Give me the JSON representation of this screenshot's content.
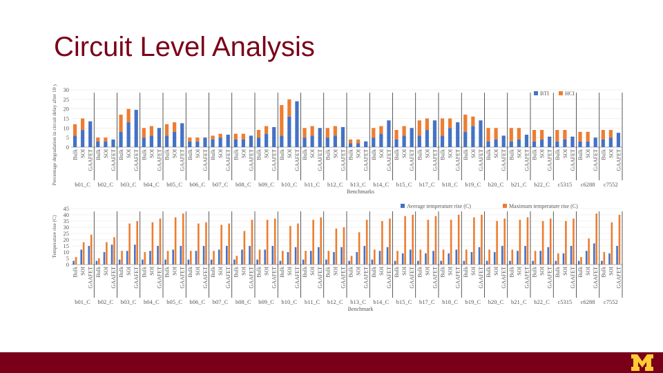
{
  "page": {
    "title": "Circuit Level Analysis"
  },
  "colors": {
    "brand": "#7a0019",
    "blue": "#4472c4",
    "orange": "#ed7d31",
    "footer": "#7a0019",
    "logo": "#ffcc33"
  },
  "chart_data": [
    {
      "type": "bar",
      "stacked": true,
      "ylim": [
        0,
        30
      ],
      "yticks": [
        0,
        5,
        10,
        15,
        20,
        25,
        30
      ],
      "ylabel": "Percentage degradation in circuit delay after 10 years due to BTI",
      "xlabel": "Benchmarks",
      "subcategories": [
        "Bulk",
        "SOI",
        "GAAFET"
      ],
      "groups": [
        "b01_C",
        "b02_C",
        "b03_C",
        "b04_C",
        "b05_C",
        "b06_C",
        "b07_C",
        "b08_C",
        "b09_C",
        "b10_C",
        "b11_C",
        "b12_C",
        "b13_C",
        "b14_C",
        "b15_C",
        "b17_C",
        "b18_C",
        "b19_C",
        "b20_C",
        "b21_C",
        "b22_C",
        "c5315",
        "c6288",
        "c7552"
      ],
      "series": [
        {
          "name": "BTI",
          "values": [
            6,
            9,
            13.5,
            3,
            3,
            4,
            8,
            13,
            19.5,
            5,
            6,
            10,
            6,
            8,
            12.5,
            3,
            3,
            5,
            4,
            5,
            6.5,
            4,
            4,
            6,
            5,
            7,
            10.5,
            6,
            16,
            24,
            5,
            6,
            10,
            5,
            6,
            10.5,
            2,
            2,
            3,
            5,
            7,
            14,
            4,
            6,
            10,
            6,
            9,
            14,
            6,
            10,
            13,
            8,
            11,
            14,
            3,
            4,
            6,
            3,
            4,
            6.5,
            3,
            4,
            5.5,
            3,
            4,
            5.5,
            3,
            3,
            5,
            4,
            5,
            7.5
          ]
        },
        {
          "name": "HCI",
          "values": [
            6,
            6,
            0,
            2,
            2,
            0,
            9,
            7,
            0,
            5,
            5,
            0,
            6,
            5,
            0,
            2,
            2,
            0,
            2,
            2,
            0,
            3,
            3,
            0,
            4,
            4,
            0,
            16,
            9,
            0,
            5,
            5,
            0,
            5,
            5,
            0,
            2,
            2,
            0,
            5,
            4,
            0,
            5,
            5,
            0,
            8,
            6,
            0,
            9,
            5,
            0,
            9,
            5,
            0,
            7,
            6,
            0,
            7,
            6,
            0,
            6,
            5,
            0,
            6,
            5,
            0,
            5,
            5,
            0,
            5,
            4,
            0
          ]
        }
      ],
      "legend_position": "top-right"
    },
    {
      "type": "bar",
      "ylim": [
        0,
        45
      ],
      "yticks": [
        0,
        5,
        10,
        15,
        20,
        25,
        30,
        35,
        40,
        45
      ],
      "ylabel": "Temperature rise (C)",
      "xlabel": "Benchmark",
      "subcategories": [
        "Bulk",
        "SOI",
        "GAAFET"
      ],
      "groups": [
        "b01_C",
        "b02_C",
        "b03_C",
        "b04_C",
        "b05_C",
        "b06_C",
        "b07_C",
        "b08_C",
        "b09_C",
        "b10_C",
        "b11_C",
        "b12_C",
        "b13_C",
        "b14_C",
        "b15_C",
        "b17_C",
        "b18_C",
        "b19_C",
        "b20_C",
        "b21_C",
        "b22_C",
        "c5315",
        "c6288",
        "c7552"
      ],
      "series": [
        {
          "name": "Average temperature rise (C)",
          "values": [
            3,
            12,
            15,
            3,
            10,
            16,
            4,
            11,
            16,
            4,
            11,
            15,
            4,
            12,
            15,
            4,
            11,
            15,
            4,
            12,
            15,
            4,
            12,
            15,
            4,
            12,
            15,
            3,
            10,
            14,
            4,
            11,
            14,
            4,
            10,
            14,
            3,
            10,
            15,
            4,
            11,
            14,
            3,
            9,
            12,
            3,
            9,
            11,
            3,
            9,
            12,
            3,
            10,
            14,
            3,
            10,
            15,
            3,
            11,
            15,
            3,
            11,
            14,
            3,
            9,
            15,
            3,
            11,
            17,
            3,
            9,
            15
          ]
        },
        {
          "name": "Maximum temperature rise (C)",
          "values": [
            6,
            18,
            24,
            5,
            18,
            22,
            11,
            33,
            35,
            10,
            34,
            37,
            11,
            38,
            41,
            11,
            33,
            34,
            11,
            32,
            33,
            7,
            27,
            36,
            12,
            36,
            37,
            11,
            31,
            33,
            11,
            36,
            38,
            11,
            29,
            30,
            7,
            26,
            36,
            12,
            35,
            37,
            11,
            39,
            40,
            12,
            36,
            39,
            12,
            36,
            40,
            12,
            38,
            40,
            12,
            35,
            37,
            12,
            36,
            38,
            11,
            35,
            37,
            9,
            35,
            37,
            6,
            21,
            41,
            10,
            34,
            40
          ]
        }
      ],
      "legend_position": "top-right"
    }
  ]
}
